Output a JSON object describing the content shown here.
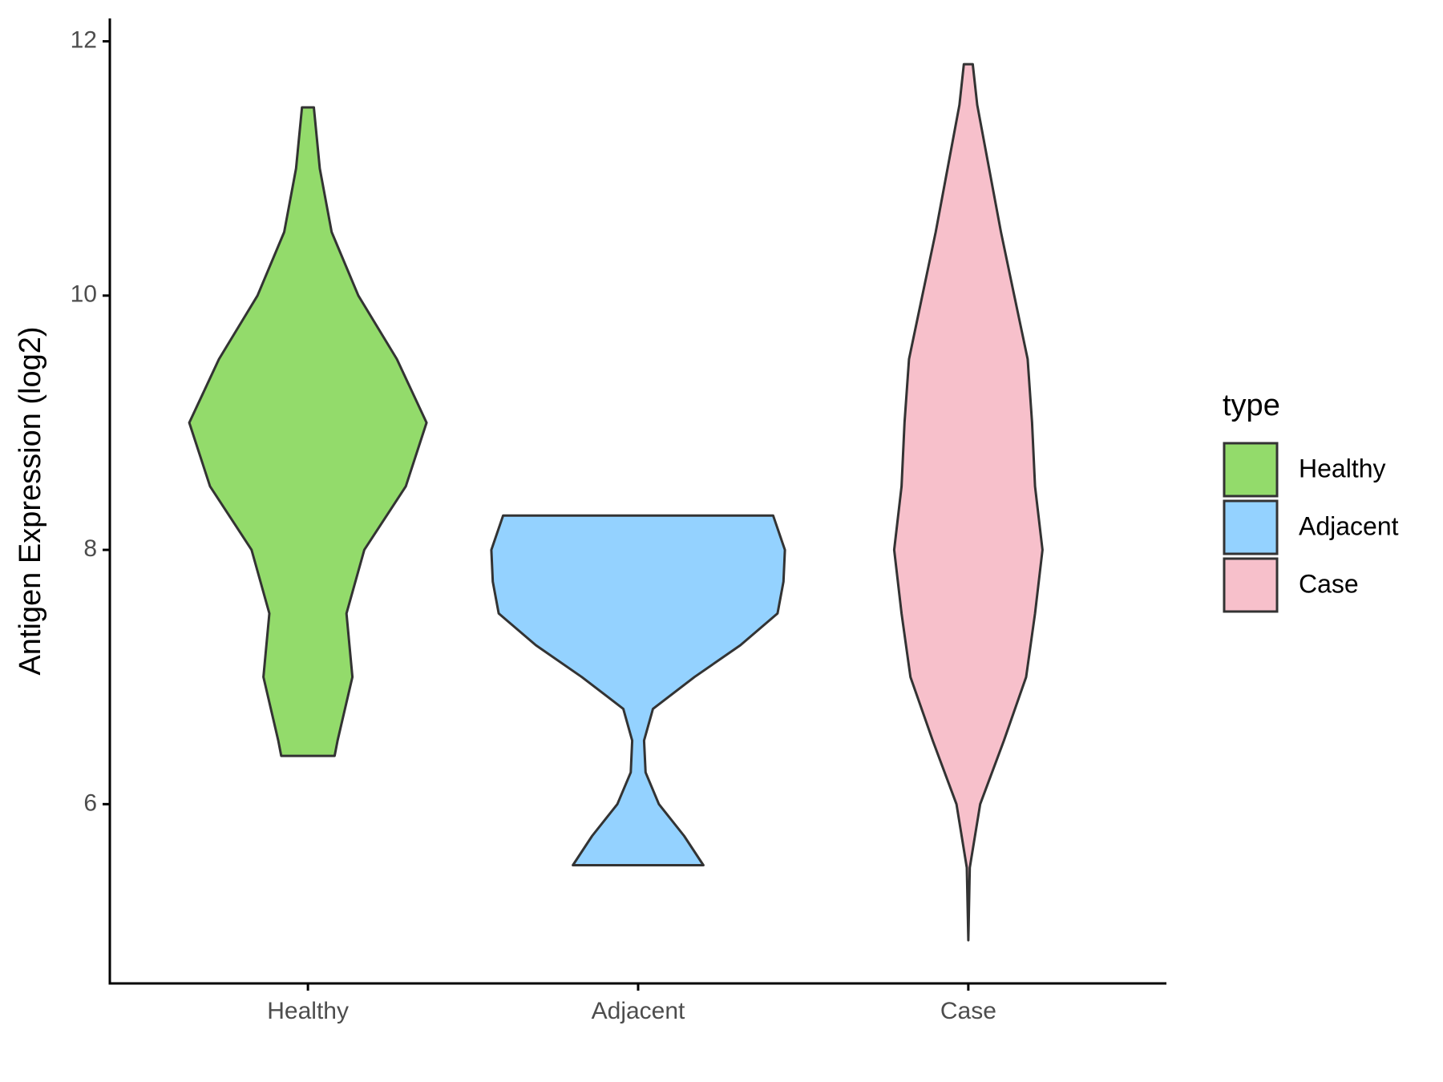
{
  "chart_data": {
    "type": "violin",
    "y_label": "Antigen Expression (log2)",
    "categories": [
      "Healthy",
      "Adjacent",
      "Case"
    ],
    "legend_title": "type",
    "legend_position": "right",
    "ylim": [
      4.59,
      12.18
    ],
    "yticks": [
      6,
      8,
      10,
      12
    ],
    "grid": false,
    "series": [
      {
        "name": "Healthy",
        "color": "#93DB6B",
        "y": [
          11.48,
          11,
          10.5,
          10,
          9.5,
          9,
          8.5,
          8,
          7.5,
          7,
          6.5,
          6.38
        ],
        "density": [
          0.04,
          0.08,
          0.16,
          0.34,
          0.6,
          0.8,
          0.66,
          0.38,
          0.26,
          0.3,
          0.2,
          0.18
        ]
      },
      {
        "name": "Adjacent",
        "color": "#94D2FF",
        "y": [
          8.27,
          8,
          7.75,
          7.5,
          7.25,
          7,
          6.75,
          6.5,
          6.25,
          6,
          5.75,
          5.52
        ],
        "density": [
          0.91,
          0.99,
          0.98,
          0.94,
          0.69,
          0.38,
          0.1,
          0.04,
          0.05,
          0.14,
          0.31,
          0.44
        ]
      },
      {
        "name": "Case",
        "color": "#F7C0CB",
        "y": [
          11.82,
          11.5,
          11,
          10.5,
          10,
          9.5,
          9,
          8.5,
          8,
          7.5,
          7,
          6.5,
          6,
          5.5,
          4.93
        ],
        "density": [
          0.03,
          0.06,
          0.14,
          0.22,
          0.31,
          0.4,
          0.43,
          0.45,
          0.5,
          0.45,
          0.39,
          0.24,
          0.08,
          0.01,
          0
        ]
      }
    ]
  }
}
